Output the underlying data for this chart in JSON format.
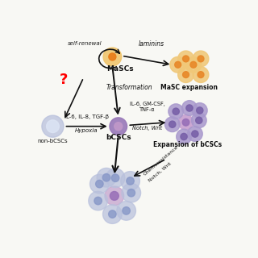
{
  "bg_color": "#f8f8f4",
  "mascs_label": "MaSCs",
  "masc_expansion_label": "MaSC expansion",
  "nonbcsc_label": "non-bCSCs",
  "bcsc_label": "bCSCs",
  "bcsc_expansion_label": "Expansion of bCSCs",
  "self_renewal_label": "self-renewal",
  "laminins_label": "laminins",
  "transformation_label": "Transformation",
  "question_mark": "?",
  "il6_il8_label": "IL-6, IL-8, TGF-β",
  "hypoxia_label": "Hypoxia",
  "il6_gmcsf_label": "IL-6, GM-CSF,\nTNF-α",
  "notch_wnt_label1": "Notch, Wnt",
  "chemoresistance_label": "Chemoresistance",
  "notch_wnt_label2": "Notch, Wnt",
  "mascs_outer": "#f0c46a",
  "mascs_inner": "#e87c18",
  "orange_cluster_outer": "#f0c878",
  "orange_cluster_inner": "#e88828",
  "nonbcsc_outer": "#b8c0dc",
  "nonbcsc_inner": "#dce4f4",
  "bcsc_outer": "#9878b8",
  "bcsc_inner": "#c098c8",
  "purple_cluster_outer": "#a898cc",
  "purple_cluster_inner": "#7860a8",
  "purple_cluster_center_outer": "#c8a0d0",
  "purple_cluster_center_inner": "#9870b8",
  "bottom_outer": "#b8c0dc",
  "bottom_inner": "#8898c8",
  "bottom_center_outer": "#c8a8d0",
  "bottom_center_inner": "#9870b8",
  "arrow_color": "#111111"
}
